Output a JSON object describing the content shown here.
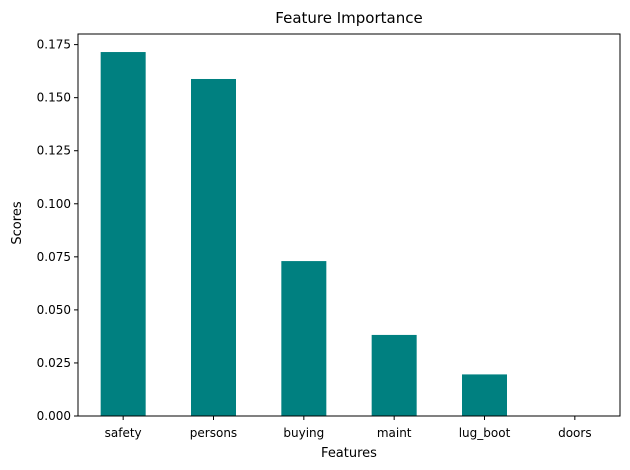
{
  "chart_data": {
    "type": "bar",
    "title": "Feature Importance",
    "xlabel": "Features",
    "ylabel": "Scores",
    "categories": [
      "safety",
      "persons",
      "buying",
      "maint",
      "lug_boot",
      "doors"
    ],
    "values": [
      0.1715,
      0.1588,
      0.073,
      0.0382,
      0.0196,
      0.0
    ],
    "ylim": [
      0,
      0.18
    ],
    "yticks": [
      0.0,
      0.025,
      0.05,
      0.075,
      0.1,
      0.125,
      0.15,
      0.175
    ],
    "ytick_labels": [
      "0.000",
      "0.025",
      "0.050",
      "0.075",
      "0.100",
      "0.125",
      "0.150",
      "0.175"
    ],
    "grid": false,
    "colors": {
      "bar": "#008080",
      "axis": "#000000",
      "background": "#ffffff"
    }
  }
}
